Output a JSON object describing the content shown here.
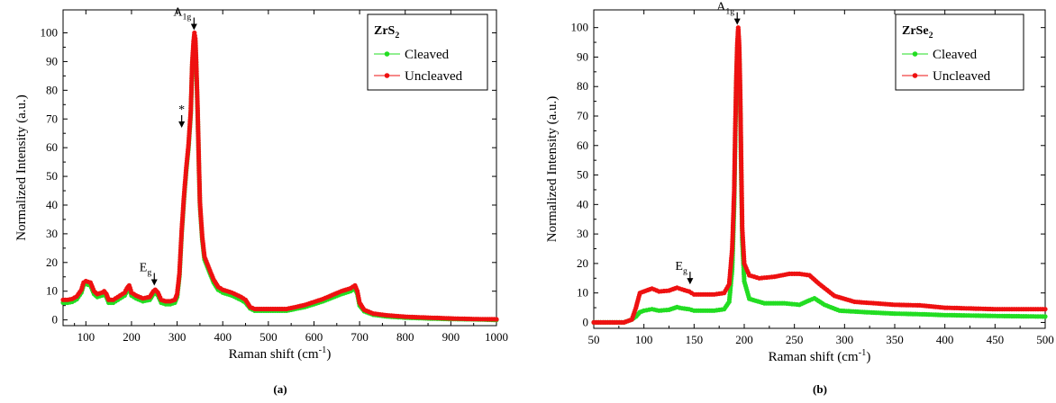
{
  "chart_data": [
    {
      "type": "scatter",
      "panel_label": "(a)",
      "xlabel": "Raman shift (cm",
      "xlabel_sup": "-1",
      "xlabel_end": ")",
      "ylabel": "Normalized Intensity (a.u.)",
      "xlim": [
        50,
        1000
      ],
      "ylim": [
        -2,
        108
      ],
      "xticks": [
        100,
        200,
        300,
        400,
        500,
        600,
        700,
        800,
        900,
        1000
      ],
      "yticks": [
        0,
        10,
        20,
        30,
        40,
        50,
        60,
        70,
        80,
        90,
        100
      ],
      "legend": {
        "title": "ZrS",
        "title_sub": "2",
        "placement": "top-right"
      },
      "annotations": [
        {
          "label": "A",
          "sub": "1g",
          "x": 337,
          "y": 100
        },
        {
          "label": "*",
          "sub": "",
          "x": 310,
          "y": 66
        },
        {
          "label": "E",
          "sub": "g",
          "x": 250,
          "y": 11
        }
      ],
      "series": [
        {
          "name": "Cleaved",
          "color": "#22dd22",
          "points": [
            [
              50,
              6
            ],
            [
              60,
              6
            ],
            [
              70,
              6.3
            ],
            [
              80,
              7.2
            ],
            [
              90,
              9.5
            ],
            [
              95,
              12
            ],
            [
              100,
              12.5
            ],
            [
              110,
              12
            ],
            [
              118,
              9
            ],
            [
              125,
              8
            ],
            [
              135,
              8.5
            ],
            [
              140,
              9
            ],
            [
              145,
              8
            ],
            [
              150,
              6
            ],
            [
              160,
              6
            ],
            [
              175,
              7.5
            ],
            [
              185,
              8.5
            ],
            [
              190,
              10
            ],
            [
              195,
              11
            ],
            [
              200,
              8.5
            ],
            [
              210,
              7.5
            ],
            [
              225,
              6.5
            ],
            [
              240,
              7
            ],
            [
              248,
              9
            ],
            [
              252,
              9.5
            ],
            [
              258,
              8.5
            ],
            [
              265,
              6
            ],
            [
              275,
              5.5
            ],
            [
              285,
              5.5
            ],
            [
              295,
              6
            ],
            [
              300,
              8
            ],
            [
              305,
              15
            ],
            [
              310,
              30
            ],
            [
              315,
              42
            ],
            [
              320,
              52
            ],
            [
              325,
              60
            ],
            [
              330,
              72
            ],
            [
              333,
              88
            ],
            [
              336,
              96
            ],
            [
              338,
              99
            ],
            [
              340,
              97
            ],
            [
              342,
              88
            ],
            [
              345,
              72
            ],
            [
              348,
              52
            ],
            [
              350,
              40
            ],
            [
              355,
              28
            ],
            [
              360,
              21
            ],
            [
              370,
              17
            ],
            [
              380,
              13
            ],
            [
              390,
              10.5
            ],
            [
              400,
              9.5
            ],
            [
              420,
              8.5
            ],
            [
              440,
              7
            ],
            [
              450,
              6
            ],
            [
              460,
              4
            ],
            [
              470,
              3.2
            ],
            [
              500,
              3.2
            ],
            [
              540,
              3.2
            ],
            [
              580,
              4.5
            ],
            [
              620,
              6.5
            ],
            [
              660,
              9
            ],
            [
              680,
              10
            ],
            [
              690,
              11
            ],
            [
              695,
              9
            ],
            [
              700,
              5
            ],
            [
              710,
              3
            ],
            [
              730,
              1.8
            ],
            [
              760,
              1.2
            ],
            [
              800,
              0.8
            ],
            [
              850,
              0.5
            ],
            [
              900,
              0.3
            ],
            [
              950,
              0.2
            ],
            [
              1000,
              0
            ]
          ]
        },
        {
          "name": "Uncleaved",
          "color": "#ee1111",
          "points": [
            [
              50,
              7
            ],
            [
              60,
              7
            ],
            [
              70,
              7.3
            ],
            [
              80,
              8.2
            ],
            [
              90,
              10.5
            ],
            [
              95,
              13
            ],
            [
              100,
              13.5
            ],
            [
              110,
              13
            ],
            [
              118,
              10
            ],
            [
              125,
              9
            ],
            [
              135,
              9.5
            ],
            [
              140,
              10
            ],
            [
              145,
              9
            ],
            [
              150,
              7
            ],
            [
              160,
              7
            ],
            [
              175,
              8.5
            ],
            [
              185,
              9.5
            ],
            [
              190,
              11
            ],
            [
              195,
              12
            ],
            [
              200,
              9.5
            ],
            [
              210,
              8.5
            ],
            [
              225,
              7.5
            ],
            [
              240,
              8
            ],
            [
              248,
              10
            ],
            [
              252,
              10.5
            ],
            [
              258,
              9.5
            ],
            [
              265,
              7
            ],
            [
              275,
              6.5
            ],
            [
              285,
              6.5
            ],
            [
              295,
              7
            ],
            [
              300,
              9
            ],
            [
              305,
              16
            ],
            [
              310,
              31
            ],
            [
              315,
              43
            ],
            [
              320,
              53
            ],
            [
              325,
              61
            ],
            [
              330,
              73
            ],
            [
              333,
              89
            ],
            [
              336,
              97
            ],
            [
              338,
              100
            ],
            [
              340,
              98
            ],
            [
              342,
              89
            ],
            [
              345,
              73
            ],
            [
              348,
              53
            ],
            [
              350,
              41
            ],
            [
              355,
              29
            ],
            [
              360,
              22
            ],
            [
              370,
              18
            ],
            [
              380,
              14
            ],
            [
              390,
              11.5
            ],
            [
              400,
              10.5
            ],
            [
              420,
              9.5
            ],
            [
              440,
              8
            ],
            [
              450,
              7
            ],
            [
              460,
              4.5
            ],
            [
              470,
              3.8
            ],
            [
              500,
              3.8
            ],
            [
              540,
              3.8
            ],
            [
              580,
              5.2
            ],
            [
              620,
              7.3
            ],
            [
              660,
              10
            ],
            [
              680,
              11
            ],
            [
              690,
              12
            ],
            [
              695,
              10
            ],
            [
              700,
              6
            ],
            [
              710,
              3.5
            ],
            [
              730,
              2.2
            ],
            [
              760,
              1.6
            ],
            [
              800,
              1.1
            ],
            [
              850,
              0.8
            ],
            [
              900,
              0.5
            ],
            [
              950,
              0.3
            ],
            [
              1000,
              0.2
            ]
          ]
        }
      ]
    },
    {
      "type": "scatter",
      "panel_label": "(b)",
      "xlabel": "Raman shift (cm",
      "xlabel_sup": "-1",
      "xlabel_end": ")",
      "ylabel": "Normalized Intensity (a.u.)",
      "xlim": [
        50,
        500
      ],
      "ylim": [
        -2,
        106
      ],
      "xticks": [
        50,
        100,
        150,
        200,
        250,
        300,
        350,
        400,
        450,
        500
      ],
      "yticks": [
        0,
        10,
        20,
        30,
        40,
        50,
        60,
        70,
        80,
        90,
        100
      ],
      "legend": {
        "title": "ZrSe",
        "title_sub": "2",
        "placement": "top-right"
      },
      "annotations": [
        {
          "label": "A",
          "sub": "1g",
          "x": 193,
          "y": 100
        },
        {
          "label": "E",
          "sub": "g",
          "x": 146,
          "y": 12
        }
      ],
      "series": [
        {
          "name": "Cleaved",
          "color": "#22dd22",
          "points": [
            [
              50,
              0
            ],
            [
              80,
              0
            ],
            [
              88,
              1
            ],
            [
              92,
              2
            ],
            [
              96,
              3.5
            ],
            [
              100,
              4
            ],
            [
              108,
              4.5
            ],
            [
              115,
              4
            ],
            [
              125,
              4.3
            ],
            [
              133,
              5.2
            ],
            [
              138,
              4.8
            ],
            [
              145,
              4.5
            ],
            [
              150,
              4
            ],
            [
              170,
              4
            ],
            [
              180,
              4.5
            ],
            [
              185,
              7
            ],
            [
              188,
              18
            ],
            [
              190,
              40
            ],
            [
              191,
              62
            ],
            [
              192,
              80
            ],
            [
              193,
              92
            ],
            [
              194,
              98
            ],
            [
              195,
              92
            ],
            [
              196,
              75
            ],
            [
              197,
              50
            ],
            [
              198,
              28
            ],
            [
              200,
              14
            ],
            [
              205,
              8
            ],
            [
              220,
              6.5
            ],
            [
              240,
              6.5
            ],
            [
              255,
              6
            ],
            [
              265,
              7.5
            ],
            [
              270,
              8.2
            ],
            [
              280,
              6
            ],
            [
              295,
              4
            ],
            [
              320,
              3.5
            ],
            [
              350,
              3
            ],
            [
              375,
              2.8
            ],
            [
              400,
              2.5
            ],
            [
              450,
              2.2
            ],
            [
              500,
              2
            ]
          ]
        },
        {
          "name": "Uncleaved",
          "color": "#ee1111",
          "points": [
            [
              50,
              0
            ],
            [
              80,
              0
            ],
            [
              88,
              1
            ],
            [
              92,
              5
            ],
            [
              96,
              10
            ],
            [
              100,
              10.5
            ],
            [
              108,
              11.5
            ],
            [
              115,
              10.5
            ],
            [
              125,
              10.8
            ],
            [
              133,
              11.8
            ],
            [
              138,
              11.2
            ],
            [
              145,
              10.5
            ],
            [
              150,
              9.5
            ],
            [
              170,
              9.5
            ],
            [
              180,
              10
            ],
            [
              185,
              13
            ],
            [
              188,
              25
            ],
            [
              190,
              45
            ],
            [
              191,
              65
            ],
            [
              192,
              82
            ],
            [
              193,
              94
            ],
            [
              194,
              100
            ],
            [
              195,
              94
            ],
            [
              196,
              78
            ],
            [
              197,
              54
            ],
            [
              198,
              32
            ],
            [
              200,
              20
            ],
            [
              205,
              16
            ],
            [
              215,
              15
            ],
            [
              230,
              15.5
            ],
            [
              245,
              16.5
            ],
            [
              255,
              16.5
            ],
            [
              265,
              16
            ],
            [
              275,
              13
            ],
            [
              290,
              9
            ],
            [
              310,
              7
            ],
            [
              350,
              6
            ],
            [
              375,
              5.8
            ],
            [
              400,
              5
            ],
            [
              450,
              4.5
            ],
            [
              500,
              4.5
            ]
          ]
        }
      ]
    }
  ]
}
